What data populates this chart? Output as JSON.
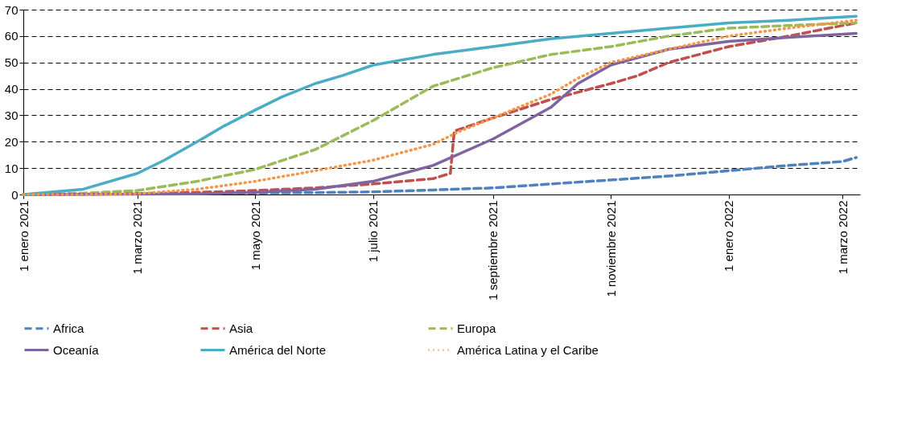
{
  "chart_data": {
    "type": "line",
    "xlim": [
      "2021-01-01",
      "2022-03-10"
    ],
    "xticks": [
      {
        "value": "2021-01-01",
        "label": "1 enero 2021"
      },
      {
        "value": "2021-03-01",
        "label": "1 marzo 2021"
      },
      {
        "value": "2021-05-01",
        "label": "1 mayo 2021"
      },
      {
        "value": "2021-07-01",
        "label": "1 julio 2021"
      },
      {
        "value": "2021-09-01",
        "label": "1 septiembre 2021"
      },
      {
        "value": "2021-11-01",
        "label": "1 noviembre 2021"
      },
      {
        "value": "2022-01-01",
        "label": "1 enero 2022"
      },
      {
        "value": "2022-03-01",
        "label": "1 marzo 2022"
      }
    ],
    "ylim": [
      0,
      70
    ],
    "yticks": [
      0,
      10,
      20,
      30,
      40,
      50,
      60,
      70
    ],
    "grid": "y",
    "legend": "bottom",
    "series": [
      {
        "name": "Africa",
        "color": "#4f81bd",
        "line_style": "dashed",
        "x": [
          "2021-01-01",
          "2021-06-01",
          "2021-07-01",
          "2021-08-01",
          "2021-09-01",
          "2021-10-01",
          "2021-11-01",
          "2021-12-01",
          "2022-01-01",
          "2022-02-01",
          "2022-03-01",
          "2022-03-08"
        ],
        "values": [
          0,
          0.7,
          1,
          1.7,
          2.5,
          4,
          5.5,
          7,
          9,
          11,
          12.5,
          14
        ]
      },
      {
        "name": "Asia",
        "color": "#c0504d",
        "line_style": "dashed",
        "x": [
          "2021-01-01",
          "2021-03-01",
          "2021-04-01",
          "2021-05-01",
          "2021-06-01",
          "2021-07-01",
          "2021-08-01",
          "2021-08-10",
          "2021-08-12",
          "2021-09-01",
          "2021-10-01",
          "2021-11-01",
          "2021-11-15",
          "2021-12-01",
          "2022-01-01",
          "2022-02-01",
          "2022-03-08"
        ],
        "values": [
          0,
          0.3,
          0.8,
          1.5,
          2.5,
          4,
          6,
          8,
          24,
          29,
          36,
          42,
          45,
          50,
          56,
          60,
          65
        ]
      },
      {
        "name": "Europa",
        "color": "#9bbb59",
        "line_style": "dashed",
        "x": [
          "2021-01-01",
          "2021-02-01",
          "2021-03-01",
          "2021-04-01",
          "2021-05-01",
          "2021-06-01",
          "2021-07-01",
          "2021-08-01",
          "2021-09-01",
          "2021-10-01",
          "2021-11-01",
          "2021-12-01",
          "2022-01-01",
          "2022-02-01",
          "2022-03-08"
        ],
        "values": [
          0,
          0.5,
          1.5,
          5,
          9.5,
          17,
          28,
          41,
          48,
          53,
          56,
          60,
          63,
          64,
          65
        ]
      },
      {
        "name": "Oceanía",
        "color": "#8064a2",
        "line_style": "solid",
        "x": [
          "2021-01-01",
          "2021-04-01",
          "2021-05-01",
          "2021-06-01",
          "2021-07-01",
          "2021-08-01",
          "2021-09-01",
          "2021-10-01",
          "2021-10-15",
          "2021-11-01",
          "2021-12-01",
          "2022-01-01",
          "2022-02-01",
          "2022-03-08"
        ],
        "values": [
          0,
          0.2,
          0.8,
          2,
          5,
          11,
          21,
          33,
          42,
          49,
          55,
          58,
          59.5,
          61
        ]
      },
      {
        "name": "América del Norte",
        "color": "#4bacc6",
        "line_style": "solid",
        "x": [
          "2021-01-01",
          "2021-02-01",
          "2021-03-01",
          "2021-03-15",
          "2021-04-01",
          "2021-04-15",
          "2021-05-01",
          "2021-05-15",
          "2021-06-01",
          "2021-06-15",
          "2021-07-01",
          "2021-08-01",
          "2021-09-01",
          "2021-10-01",
          "2021-11-01",
          "2021-12-01",
          "2022-01-01",
          "2022-02-01",
          "2022-03-08"
        ],
        "values": [
          0,
          2,
          8,
          13,
          20,
          26,
          32,
          37,
          42,
          45,
          49,
          53,
          56,
          59,
          61,
          63,
          65,
          66,
          67.5
        ]
      },
      {
        "name": "América Latina y el Caribe",
        "color": "#f79646",
        "line_style": "dotted",
        "x": [
          "2021-01-01",
          "2021-02-01",
          "2021-03-01",
          "2021-04-01",
          "2021-05-01",
          "2021-06-01",
          "2021-07-01",
          "2021-08-01",
          "2021-08-15",
          "2021-09-01",
          "2021-10-01",
          "2021-10-15",
          "2021-11-01",
          "2021-12-01",
          "2022-01-01",
          "2022-02-01",
          "2022-03-08"
        ],
        "values": [
          0,
          0,
          0.3,
          2,
          5,
          9,
          13,
          19,
          24,
          29,
          38,
          44,
          50,
          55,
          60,
          63,
          66
        ]
      }
    ]
  }
}
